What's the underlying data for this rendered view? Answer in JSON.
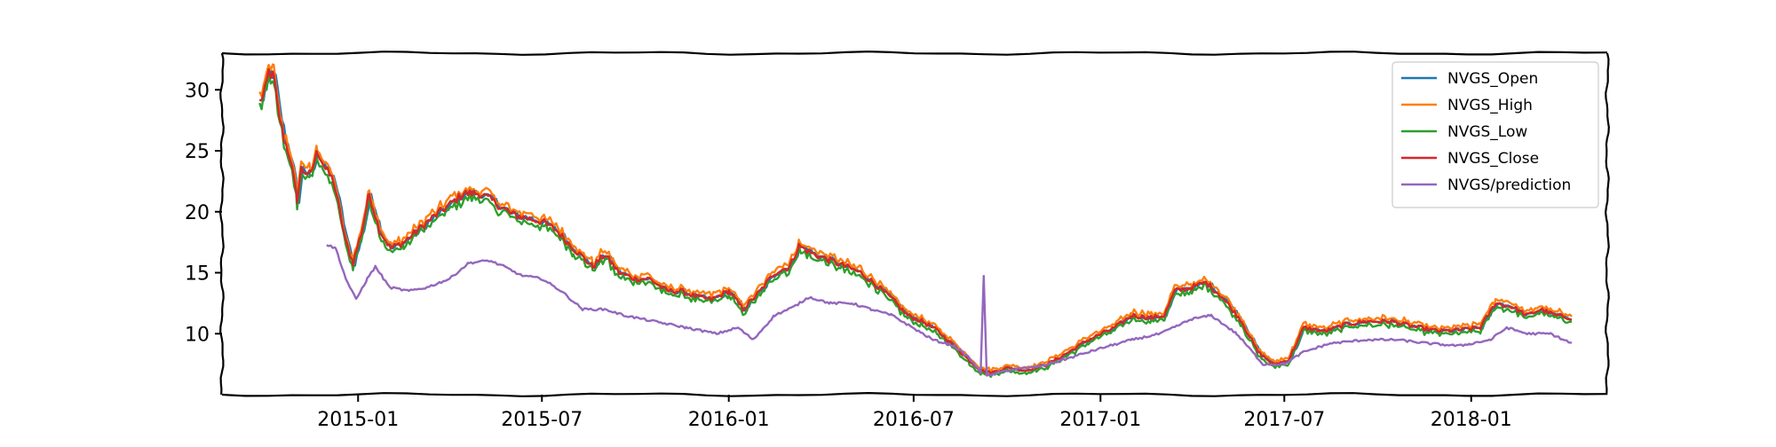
{
  "chart_data": {
    "type": "line",
    "title": "",
    "xlabel": "",
    "ylabel": "",
    "x_start": "2014-09-26",
    "x_end": "2018-04-10",
    "xlim": [
      "2014-08-20",
      "2018-05-15"
    ],
    "ylim": [
      5.0,
      33.0
    ],
    "x_ticks": [
      "2015-01",
      "2015-07",
      "2016-01",
      "2016-07",
      "2017-01",
      "2017-07",
      "2018-01"
    ],
    "x_tick_dates": [
      "2015-01-01",
      "2015-07-01",
      "2016-01-01",
      "2016-07-01",
      "2017-01-01",
      "2017-07-01",
      "2018-01-01"
    ],
    "y_ticks": [
      10,
      15,
      20,
      25,
      30
    ],
    "y_tick_labels": [
      "10",
      "15",
      "20",
      "25",
      "30"
    ],
    "grid": false,
    "legend_position": "top-right",
    "anchors": {
      "close": [
        [
          "2014-09-26",
          29.0
        ],
        [
          "2014-10-01",
          29.8
        ],
        [
          "2014-10-05",
          31.5
        ],
        [
          "2014-10-10",
          31.0
        ],
        [
          "2014-10-14",
          28.5
        ],
        [
          "2014-10-20",
          26.0
        ],
        [
          "2014-10-26",
          24.5
        ],
        [
          "2014-11-02",
          21.0
        ],
        [
          "2014-11-06",
          23.5
        ],
        [
          "2014-11-15",
          23.0
        ],
        [
          "2014-11-22",
          25.0
        ],
        [
          "2014-11-30",
          23.5
        ],
        [
          "2014-12-08",
          22.5
        ],
        [
          "2014-12-14",
          20.0
        ],
        [
          "2014-12-20",
          17.5
        ],
        [
          "2014-12-27",
          15.8
        ],
        [
          "2015-01-05",
          18.5
        ],
        [
          "2015-01-12",
          21.5
        ],
        [
          "2015-01-22",
          18.5
        ],
        [
          "2015-02-02",
          17.0
        ],
        [
          "2015-02-15",
          17.5
        ],
        [
          "2015-03-01",
          18.5
        ],
        [
          "2015-03-15",
          19.5
        ],
        [
          "2015-03-31",
          20.5
        ],
        [
          "2015-04-15",
          21.5
        ],
        [
          "2015-05-01",
          21.5
        ],
        [
          "2015-05-15",
          20.8
        ],
        [
          "2015-06-01",
          19.8
        ],
        [
          "2015-06-15",
          19.5
        ],
        [
          "2015-07-01",
          19.2
        ],
        [
          "2015-07-15",
          18.5
        ],
        [
          "2015-08-01",
          17.0
        ],
        [
          "2015-08-20",
          15.5
        ],
        [
          "2015-09-01",
          16.5
        ],
        [
          "2015-09-15",
          15.0
        ],
        [
          "2015-10-01",
          14.5
        ],
        [
          "2015-10-15",
          14.5
        ],
        [
          "2015-11-01",
          13.5
        ],
        [
          "2015-11-15",
          13.5
        ],
        [
          "2015-12-01",
          13.0
        ],
        [
          "2015-12-15",
          12.8
        ],
        [
          "2016-01-01",
          13.5
        ],
        [
          "2016-01-15",
          12.0
        ],
        [
          "2016-02-01",
          13.5
        ],
        [
          "2016-02-15",
          15.0
        ],
        [
          "2016-03-01",
          15.5
        ],
        [
          "2016-03-10",
          17.2
        ],
        [
          "2016-03-25",
          16.5
        ],
        [
          "2016-04-10",
          16.0
        ],
        [
          "2016-04-25",
          15.5
        ],
        [
          "2016-05-10",
          15.0
        ],
        [
          "2016-05-25",
          14.0
        ],
        [
          "2016-06-10",
          12.8
        ],
        [
          "2016-06-25",
          11.5
        ],
        [
          "2016-07-10",
          11.0
        ],
        [
          "2016-07-25",
          10.2
        ],
        [
          "2016-08-10",
          9.0
        ],
        [
          "2016-08-25",
          7.8
        ],
        [
          "2016-09-05",
          7.0
        ],
        [
          "2016-09-15",
          6.8
        ],
        [
          "2016-10-01",
          7.2
        ],
        [
          "2016-10-20",
          7.0
        ],
        [
          "2016-11-10",
          7.5
        ],
        [
          "2016-12-01",
          8.5
        ],
        [
          "2016-12-20",
          9.5
        ],
        [
          "2017-01-15",
          10.5
        ],
        [
          "2017-02-01",
          11.5
        ],
        [
          "2017-02-20",
          11.3
        ],
        [
          "2017-03-05",
          11.5
        ],
        [
          "2017-03-15",
          13.5
        ],
        [
          "2017-04-01",
          13.8
        ],
        [
          "2017-04-15",
          14.2
        ],
        [
          "2017-05-01",
          13.0
        ],
        [
          "2017-05-20",
          11.0
        ],
        [
          "2017-06-05",
          8.5
        ],
        [
          "2017-06-20",
          7.5
        ],
        [
          "2017-07-05",
          7.8
        ],
        [
          "2017-07-20",
          10.5
        ],
        [
          "2017-08-10",
          10.2
        ],
        [
          "2017-09-01",
          10.8
        ],
        [
          "2017-09-20",
          11.0
        ],
        [
          "2017-10-15",
          11.0
        ],
        [
          "2017-11-10",
          10.5
        ],
        [
          "2017-12-01",
          10.2
        ],
        [
          "2017-12-20",
          10.3
        ],
        [
          "2018-01-10",
          10.5
        ],
        [
          "2018-01-25",
          12.5
        ],
        [
          "2018-02-10",
          12.2
        ],
        [
          "2018-02-25",
          11.5
        ],
        [
          "2018-03-10",
          12.0
        ],
        [
          "2018-03-25",
          11.5
        ],
        [
          "2018-04-10",
          11.3
        ]
      ],
      "prediction": [
        [
          "2014-12-01",
          17.3
        ],
        [
          "2014-12-10",
          17.0
        ],
        [
          "2014-12-20",
          14.5
        ],
        [
          "2014-12-30",
          12.8
        ],
        [
          "2015-01-10",
          14.5
        ],
        [
          "2015-01-18",
          15.5
        ],
        [
          "2015-02-01",
          13.8
        ],
        [
          "2015-02-20",
          13.5
        ],
        [
          "2015-03-10",
          13.8
        ],
        [
          "2015-04-01",
          14.5
        ],
        [
          "2015-04-20",
          15.8
        ],
        [
          "2015-05-10",
          16.0
        ],
        [
          "2015-05-25",
          15.5
        ],
        [
          "2015-06-10",
          14.8
        ],
        [
          "2015-07-01",
          14.5
        ],
        [
          "2015-07-20",
          13.5
        ],
        [
          "2015-08-10",
          12.0
        ],
        [
          "2015-09-01",
          12.0
        ],
        [
          "2015-09-20",
          11.5
        ],
        [
          "2015-10-20",
          11.0
        ],
        [
          "2015-11-20",
          10.5
        ],
        [
          "2015-12-20",
          10.0
        ],
        [
          "2016-01-10",
          10.5
        ],
        [
          "2016-01-25",
          9.5
        ],
        [
          "2016-02-15",
          11.5
        ],
        [
          "2016-03-05",
          12.2
        ],
        [
          "2016-03-20",
          13.0
        ],
        [
          "2016-04-10",
          12.5
        ],
        [
          "2016-05-01",
          12.5
        ],
        [
          "2016-05-20",
          12.0
        ],
        [
          "2016-06-10",
          11.5
        ],
        [
          "2016-06-30",
          10.5
        ],
        [
          "2016-07-20",
          9.5
        ],
        [
          "2016-08-10",
          9.0
        ],
        [
          "2016-08-25",
          8.0
        ],
        [
          "2016-09-05",
          6.8
        ],
        [
          "2016-09-08",
          14.8
        ],
        [
          "2016-09-11",
          6.5
        ],
        [
          "2016-10-01",
          7.0
        ],
        [
          "2016-11-01",
          7.3
        ],
        [
          "2016-12-01",
          8.0
        ],
        [
          "2017-01-01",
          8.8
        ],
        [
          "2017-02-01",
          9.5
        ],
        [
          "2017-03-01",
          10.0
        ],
        [
          "2017-04-01",
          11.2
        ],
        [
          "2017-04-20",
          11.5
        ],
        [
          "2017-05-15",
          10.0
        ],
        [
          "2017-06-10",
          7.5
        ],
        [
          "2017-07-01",
          7.5
        ],
        [
          "2017-07-20",
          8.5
        ],
        [
          "2017-08-15",
          9.2
        ],
        [
          "2017-09-20",
          9.5
        ],
        [
          "2017-10-20",
          9.5
        ],
        [
          "2017-11-20",
          9.2
        ],
        [
          "2017-12-20",
          9.0
        ],
        [
          "2018-01-20",
          9.5
        ],
        [
          "2018-02-05",
          10.5
        ],
        [
          "2018-02-25",
          10.0
        ],
        [
          "2018-03-20",
          10.0
        ],
        [
          "2018-04-10",
          9.2
        ]
      ]
    },
    "series": [
      {
        "name": "NVGS_Open",
        "color": "#1f77b4"
      },
      {
        "name": "NVGS_High",
        "color": "#ff7f0e"
      },
      {
        "name": "NVGS_Low",
        "color": "#2ca02c"
      },
      {
        "name": "NVGS_Close",
        "color": "#d62728"
      },
      {
        "name": "NVGS/prediction",
        "color": "#9467bd"
      }
    ]
  }
}
